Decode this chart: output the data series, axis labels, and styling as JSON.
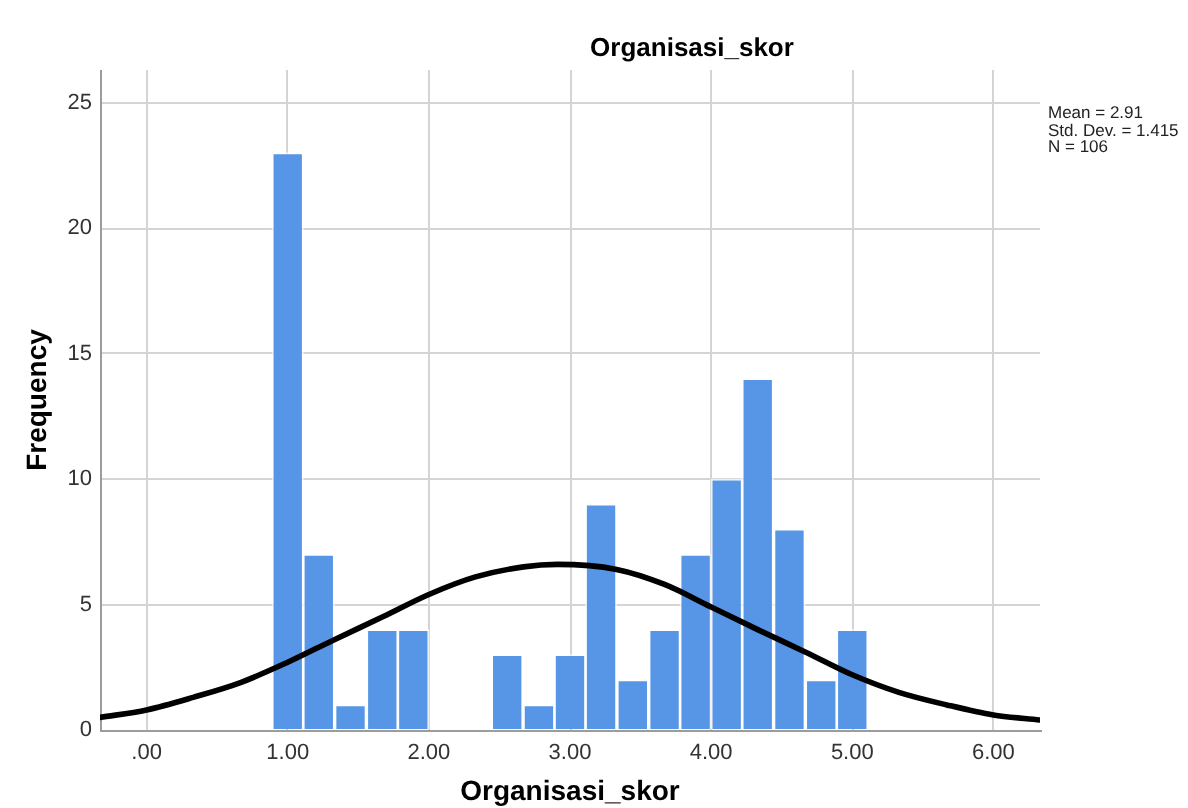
{
  "chart_data": {
    "type": "histogram",
    "title": "Organisasi_skor",
    "xlabel": "Organisasi_skor",
    "ylabel": "Frequency",
    "annotations": [
      "Mean = 2.91",
      "Std. Dev. = 1.415",
      "N = 106"
    ],
    "series": [
      {
        "type": "histogram",
        "color": "#5796e6",
        "bins": [
          0.89,
          1.11,
          1.33,
          1.56,
          1.78,
          2.0,
          2.22,
          2.44,
          2.67,
          2.89,
          3.11,
          3.33,
          3.56,
          3.78,
          4.0,
          4.22,
          4.44,
          4.67,
          4.89,
          5.11
        ],
        "values": [
          23,
          7,
          1,
          4,
          4,
          0,
          0,
          3,
          1,
          3,
          9,
          2,
          4,
          7,
          10,
          14,
          8,
          2,
          4
        ]
      },
      {
        "type": "line",
        "color": "#000000",
        "marker": "none",
        "x": [
          -0.33,
          0,
          0.33,
          0.67,
          1,
          1.33,
          1.67,
          2,
          2.33,
          2.67,
          2.91,
          3.33,
          3.67,
          4,
          4.33,
          4.67,
          5,
          5.33,
          5.67,
          6,
          6.33
        ],
        "values": [
          0.5,
          0.8,
          1.3,
          1.9,
          2.7,
          3.6,
          4.5,
          5.4,
          6.1,
          6.5,
          6.6,
          6.4,
          5.8,
          4.9,
          4.0,
          3.1,
          2.2,
          1.5,
          1.0,
          0.6,
          0.4
        ]
      }
    ],
    "xlim": [
      -0.33,
      6.33
    ],
    "xticks": [
      {
        "value": 0,
        "label": ".00"
      },
      {
        "value": 1,
        "label": "1.00"
      },
      {
        "value": 2,
        "label": "2.00"
      },
      {
        "value": 3,
        "label": "3.00"
      },
      {
        "value": 4,
        "label": "4.00"
      },
      {
        "value": 5,
        "label": "5.00"
      },
      {
        "value": 6,
        "label": "6.00"
      }
    ],
    "ylim": [
      0,
      26.3
    ],
    "yticks": [
      0,
      5,
      10,
      15,
      20,
      25
    ],
    "grid": true,
    "legend": false
  }
}
